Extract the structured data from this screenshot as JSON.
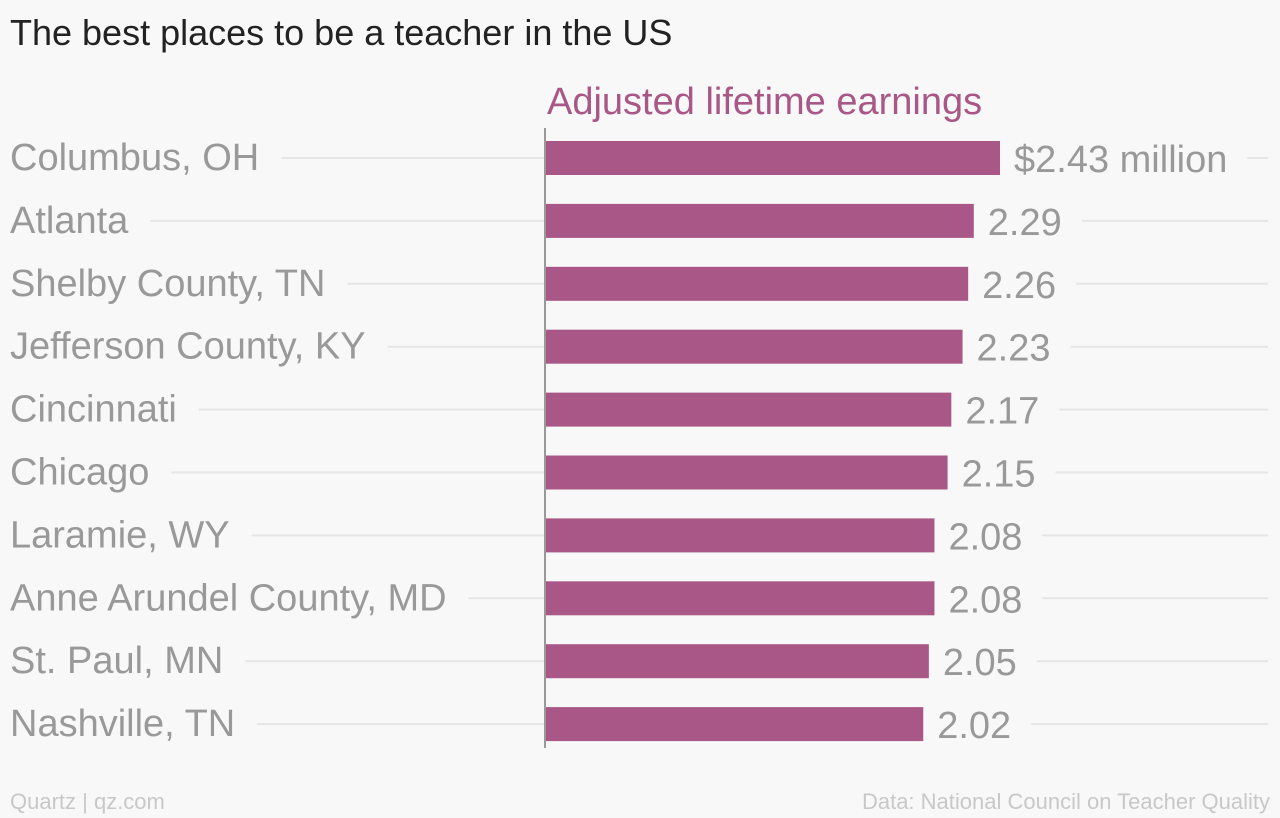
{
  "title": "The best places to be a teacher in the US",
  "footer": {
    "left": "Quartz | qz.com",
    "right": "Data: National Council on Teacher Quality"
  },
  "chart_data": {
    "type": "bar",
    "orientation": "horizontal",
    "series_title": "Adjusted lifetime earnings",
    "categories": [
      "Columbus, OH",
      "Atlanta",
      "Shelby County, TN",
      "Jefferson County, KY",
      "Cincinnati",
      "Chicago",
      "Laramie, WY",
      "Anne Arundel County, MD",
      "St. Paul, MN",
      "Nashville, TN"
    ],
    "values": [
      2.43,
      2.29,
      2.26,
      2.23,
      2.17,
      2.15,
      2.08,
      2.08,
      2.05,
      2.02
    ],
    "value_labels": [
      "$2.43 million",
      "2.29",
      "2.26",
      "2.23",
      "2.17",
      "2.15",
      "2.08",
      "2.08",
      "2.05",
      "2.02"
    ],
    "xlim": [
      0,
      2.43
    ],
    "grid": true,
    "colors": {
      "bar": "#a95786",
      "series_title": "#a95786",
      "grid": "#e6e6e6",
      "axis": "#999999"
    }
  }
}
